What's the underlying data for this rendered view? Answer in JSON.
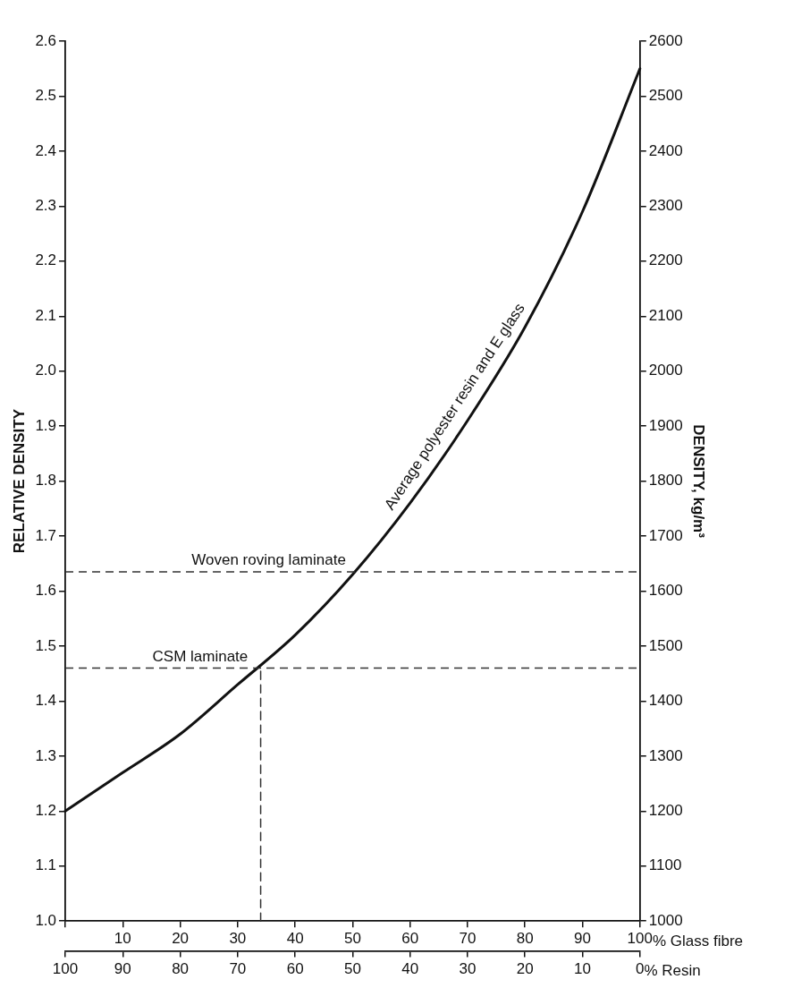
{
  "chart_data": {
    "type": "line",
    "xlabel": "% Glass fibre",
    "x2label": "% Resin",
    "ylabel": "RELATIVE DENSITY",
    "y2label": "DENSITY, kg/m³",
    "xlim": [
      0,
      100
    ],
    "xticks": [
      {
        "value": 0,
        "label": null
      },
      10,
      20,
      30,
      40,
      50,
      60,
      70,
      80,
      90,
      100
    ],
    "x2lim": [
      100,
      0
    ],
    "x2ticks": [
      100,
      90,
      80,
      70,
      60,
      50,
      40,
      30,
      20,
      10,
      0
    ],
    "ylim": [
      1.0,
      2.6
    ],
    "yticks": [
      {
        "value": 1,
        "label": "1.0"
      },
      1.1,
      1.2,
      1.3,
      1.4,
      1.5,
      1.6,
      1.7,
      1.8,
      1.9,
      {
        "value": 2,
        "label": "2.0"
      },
      2.1,
      2.2,
      2.3,
      2.4,
      2.5,
      2.6
    ],
    "y2lim": [
      1000,
      2600
    ],
    "y2ticks": [
      1000,
      1100,
      1200,
      1300,
      1400,
      1500,
      1600,
      1700,
      1800,
      1900,
      2000,
      2100,
      2200,
      2300,
      2400,
      2500,
      2600
    ],
    "x": [
      0,
      10,
      20,
      30,
      40,
      50,
      60,
      70,
      80,
      90,
      100
    ],
    "series": [
      {
        "color": "#111111",
        "values": [
          1.2,
          1.27,
          1.34,
          1.43,
          1.52,
          1.63,
          1.76,
          1.91,
          2.08,
          2.29,
          2.55
        ]
      },
      {
        "color": "#333333",
        "line_style": "dashed",
        "x": [
          34,
          34
        ],
        "values": [
          1.0,
          1.46
        ]
      }
    ],
    "ref_lines": [
      {
        "axis": "y",
        "value": 1.635,
        "label": "Woven roving laminate",
        "color": "#333333",
        "line_style": "dashed"
      },
      {
        "axis": "y",
        "value": 1.46,
        "label": "CSM laminate",
        "color": "#333333",
        "line_style": "dashed"
      }
    ],
    "annotations": [
      "Average polyester resin and E glass"
    ],
    "grid": false,
    "legend": false,
    "marker": "none",
    "line_style": "solid"
  }
}
